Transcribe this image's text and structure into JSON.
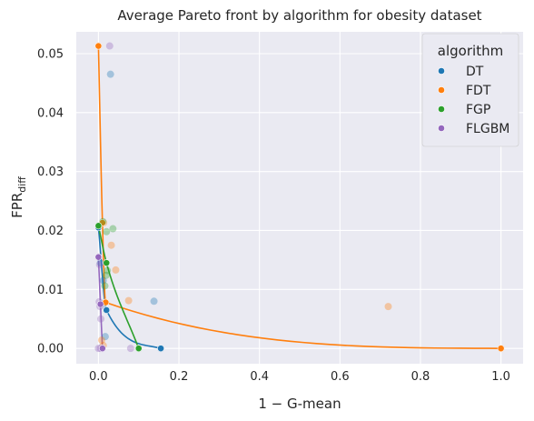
{
  "chart_data": {
    "type": "scatter",
    "title": "Average Pareto front by algorithm for obesity dataset",
    "xlabel": "1 − G-mean",
    "ylabel_main": "FPR",
    "ylabel_sub": "diff",
    "xlim": [
      -0.055,
      1.055
    ],
    "ylim": [
      -0.0026,
      0.0537
    ],
    "x_ticks": [
      0.0,
      0.2,
      0.4,
      0.6,
      0.8,
      1.0
    ],
    "x_tick_labels": [
      "0.0",
      "0.2",
      "0.4",
      "0.6",
      "0.8",
      "1.0"
    ],
    "y_ticks": [
      0.0,
      0.01,
      0.02,
      0.03,
      0.04,
      0.05
    ],
    "y_tick_labels": [
      "0.00",
      "0.01",
      "0.02",
      "0.03",
      "0.04",
      "0.05"
    ],
    "grid": true,
    "background": "#eaeaf2",
    "legend": {
      "title": "algorithm",
      "placement": "top-right",
      "frame_color": "#eaeaf2"
    },
    "series": [
      {
        "name": "DT",
        "color": "#1f77b4",
        "front": [
          [
            0.0,
            0.0205
          ],
          [
            0.02,
            0.0065
          ],
          [
            0.155,
            0.0
          ]
        ],
        "points": [
          [
            0.138,
            0.008
          ],
          [
            0.02,
            0.0065
          ],
          [
            0.008,
            0.0075
          ],
          [
            0.017,
            0.002
          ],
          [
            0.155,
            0.0
          ],
          [
            0.03,
            0.0465
          ],
          [
            0.005,
            0.0145
          ],
          [
            0.012,
            0.0115
          ]
        ]
      },
      {
        "name": "FDT",
        "color": "#ff7f0e",
        "front": [
          [
            0.0,
            0.0513
          ],
          [
            0.01,
            0.0213
          ],
          [
            0.018,
            0.0078
          ],
          [
            1.0,
            0.0
          ]
        ],
        "points": [
          [
            0.0,
            0.0513
          ],
          [
            0.013,
            0.0213
          ],
          [
            0.018,
            0.0078
          ],
          [
            1.0,
            0.0
          ],
          [
            0.72,
            0.0071
          ],
          [
            0.075,
            0.0081
          ],
          [
            0.032,
            0.0175
          ],
          [
            0.043,
            0.0133
          ],
          [
            0.008,
            0.0014
          ],
          [
            0.012,
            0.0005
          ]
        ]
      },
      {
        "name": "FGP",
        "color": "#2ca02c",
        "front": [
          [
            0.0,
            0.0208
          ],
          [
            0.02,
            0.0145
          ],
          [
            0.1,
            0.0
          ]
        ],
        "points": [
          [
            0.0,
            0.0208
          ],
          [
            0.1,
            0.0
          ],
          [
            0.036,
            0.0203
          ],
          [
            0.02,
            0.0198
          ],
          [
            0.022,
            0.0132
          ],
          [
            0.019,
            0.0124
          ],
          [
            0.011,
            0.0215
          ],
          [
            0.016,
            0.0106
          ]
        ]
      },
      {
        "name": "FLGBM",
        "color": "#9467bd",
        "front": [
          [
            0.0,
            0.0155
          ],
          [
            0.005,
            0.0075
          ],
          [
            0.01,
            0.0
          ]
        ],
        "points": [
          [
            0.0,
            0.0155
          ],
          [
            0.0,
            0.0
          ],
          [
            0.01,
            0.0
          ],
          [
            0.004,
            0.0071
          ],
          [
            0.006,
            0.005
          ],
          [
            0.003,
            0.0142
          ],
          [
            0.002,
            0.0079
          ],
          [
            0.028,
            0.0513
          ],
          [
            0.08,
            0.0
          ],
          [
            0.005,
            0.0
          ]
        ]
      }
    ]
  }
}
